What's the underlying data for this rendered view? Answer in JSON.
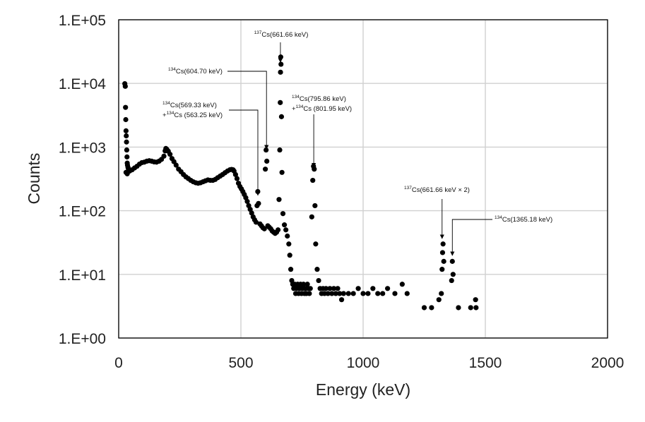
{
  "chart_data": {
    "type": "scatter",
    "title": "",
    "xlabel": "Energy (keV)",
    "ylabel": "Counts",
    "xlim": [
      0,
      2000
    ],
    "ylim": [
      1,
      100000
    ],
    "y_scale": "log",
    "grid": true,
    "legend": "none",
    "marker_color": "#000000",
    "x_ticks": [
      "0",
      "500",
      "1000",
      "1500",
      "2000"
    ],
    "y_ticks": [
      "1.E+00",
      "1.E+01",
      "1.E+02",
      "1.E+03",
      "1.E+04",
      "1.E+05"
    ],
    "annotations": [
      {
        "sup": "137",
        "text": "Cs(661.66 keV)",
        "x": 661.66,
        "y": 25000
      },
      {
        "sup": "134",
        "text": "Cs(604.70 keV)",
        "x": 604.7,
        "y": 800
      },
      {
        "sup": "134",
        "text": "Cs(569.33 keV)",
        "sup2": "134",
        "text2": "Cs (563.25 keV)",
        "x": 569.33,
        "y": 150
      },
      {
        "sup": "134",
        "text": "Cs(795.86 keV)",
        "sup2": "134",
        "text2": "Cs (801.95 keV)",
        "x": 798,
        "y": 440
      },
      {
        "sup": "137",
        "text": "Cs(661.66 keV × 2)",
        "x": 1323,
        "y": 33
      },
      {
        "sup": "134",
        "text": "Cs(1365.18 keV)",
        "x": 1365,
        "y": 17
      }
    ],
    "series": [
      {
        "values": [
          [
            25,
            9900
          ],
          [
            27,
            9000
          ],
          [
            28,
            4200
          ],
          [
            29,
            2700
          ],
          [
            30,
            1800
          ],
          [
            31,
            1500
          ],
          [
            32,
            1200
          ],
          [
            33,
            900
          ],
          [
            34,
            700
          ],
          [
            35,
            560
          ],
          [
            36,
            520
          ],
          [
            38,
            480
          ],
          [
            40,
            450
          ],
          [
            30,
            400
          ],
          [
            35,
            380
          ],
          [
            45,
            420
          ],
          [
            55,
            440
          ],
          [
            65,
            470
          ],
          [
            75,
            500
          ],
          [
            85,
            540
          ],
          [
            95,
            570
          ],
          [
            105,
            580
          ],
          [
            115,
            600
          ],
          [
            125,
            610
          ],
          [
            135,
            600
          ],
          [
            145,
            585
          ],
          [
            155,
            580
          ],
          [
            165,
            600
          ],
          [
            175,
            640
          ],
          [
            185,
            720
          ],
          [
            190,
            870
          ],
          [
            193,
            950
          ],
          [
            197,
            920
          ],
          [
            203,
            860
          ],
          [
            210,
            770
          ],
          [
            218,
            660
          ],
          [
            226,
            590
          ],
          [
            235,
            520
          ],
          [
            245,
            450
          ],
          [
            255,
            410
          ],
          [
            265,
            370
          ],
          [
            275,
            340
          ],
          [
            285,
            320
          ],
          [
            295,
            300
          ],
          [
            305,
            285
          ],
          [
            315,
            275
          ],
          [
            325,
            270
          ],
          [
            335,
            275
          ],
          [
            345,
            285
          ],
          [
            355,
            295
          ],
          [
            365,
            305
          ],
          [
            375,
            300
          ],
          [
            385,
            300
          ],
          [
            395,
            310
          ],
          [
            405,
            330
          ],
          [
            415,
            350
          ],
          [
            425,
            370
          ],
          [
            435,
            395
          ],
          [
            445,
            420
          ],
          [
            455,
            440
          ],
          [
            462,
            445
          ],
          [
            468,
            440
          ],
          [
            472,
            420
          ],
          [
            478,
            370
          ],
          [
            484,
            320
          ],
          [
            490,
            270
          ],
          [
            496,
            240
          ],
          [
            502,
            220
          ],
          [
            508,
            200
          ],
          [
            514,
            180
          ],
          [
            520,
            160
          ],
          [
            526,
            140
          ],
          [
            532,
            120
          ],
          [
            538,
            105
          ],
          [
            544,
            92
          ],
          [
            550,
            80
          ],
          [
            556,
            72
          ],
          [
            562,
            66
          ],
          [
            566,
            120
          ],
          [
            569,
            200
          ],
          [
            572,
            130
          ],
          [
            578,
            62
          ],
          [
            584,
            58
          ],
          [
            590,
            54
          ],
          [
            596,
            52
          ],
          [
            600,
            450
          ],
          [
            603,
            900
          ],
          [
            606,
            600
          ],
          [
            610,
            58
          ],
          [
            616,
            55
          ],
          [
            622,
            52
          ],
          [
            628,
            48
          ],
          [
            634,
            46
          ],
          [
            640,
            44
          ],
          [
            646,
            46
          ],
          [
            652,
            50
          ],
          [
            656,
            150
          ],
          [
            659,
            900
          ],
          [
            661,
            5000
          ],
          [
            662,
            15000
          ],
          [
            663,
            26000
          ],
          [
            664,
            20000
          ],
          [
            666,
            3000
          ],
          [
            668,
            400
          ],
          [
            672,
            90
          ],
          [
            678,
            60
          ],
          [
            684,
            50
          ],
          [
            690,
            40
          ],
          [
            696,
            30
          ],
          [
            700,
            20
          ],
          [
            704,
            12
          ],
          [
            708,
            8
          ],
          [
            712,
            7
          ],
          [
            716,
            6
          ],
          [
            720,
            7
          ],
          [
            724,
            5
          ],
          [
            728,
            6
          ],
          [
            732,
            7
          ],
          [
            736,
            5
          ],
          [
            740,
            6
          ],
          [
            744,
            7
          ],
          [
            748,
            5
          ],
          [
            752,
            6
          ],
          [
            756,
            7
          ],
          [
            760,
            5
          ],
          [
            764,
            6
          ],
          [
            768,
            5
          ],
          [
            772,
            7
          ],
          [
            776,
            6
          ],
          [
            780,
            5
          ],
          [
            784,
            6
          ],
          [
            790,
            80
          ],
          [
            794,
            300
          ],
          [
            797,
            500
          ],
          [
            800,
            450
          ],
          [
            803,
            120
          ],
          [
            806,
            30
          ],
          [
            812,
            12
          ],
          [
            818,
            8
          ],
          [
            824,
            6
          ],
          [
            830,
            5
          ],
          [
            836,
            6
          ],
          [
            842,
            5
          ],
          [
            848,
            6
          ],
          [
            856,
            5
          ],
          [
            864,
            6
          ],
          [
            872,
            5
          ],
          [
            880,
            6
          ],
          [
            888,
            5
          ],
          [
            896,
            6
          ],
          [
            904,
            5
          ],
          [
            912,
            4
          ],
          [
            920,
            5
          ],
          [
            940,
            5
          ],
          [
            960,
            5
          ],
          [
            980,
            6
          ],
          [
            1000,
            5
          ],
          [
            1020,
            5
          ],
          [
            1040,
            6
          ],
          [
            1060,
            5
          ],
          [
            1080,
            5
          ],
          [
            1100,
            6
          ],
          [
            1130,
            5
          ],
          [
            1160,
            7
          ],
          [
            1180,
            5
          ],
          [
            1250,
            3
          ],
          [
            1280,
            3
          ],
          [
            1310,
            4
          ],
          [
            1320,
            5
          ],
          [
            1323,
            12
          ],
          [
            1325,
            22
          ],
          [
            1327,
            30
          ],
          [
            1330,
            16
          ],
          [
            1362,
            8
          ],
          [
            1365,
            16
          ],
          [
            1368,
            10
          ],
          [
            1390,
            3
          ],
          [
            1440,
            3
          ],
          [
            1460,
            4
          ],
          [
            1462,
            3
          ]
        ]
      }
    ]
  }
}
